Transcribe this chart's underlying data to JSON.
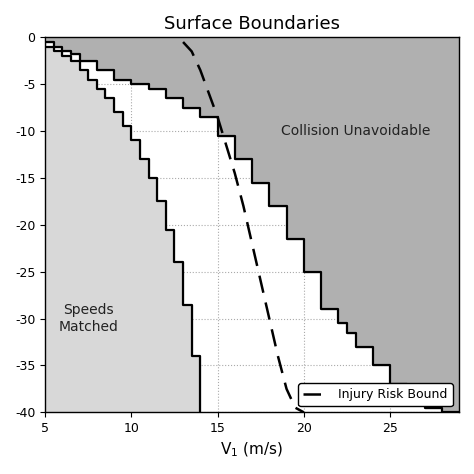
{
  "title": "Surface Boundaries",
  "xlabel": "V$_1$ (m/s)",
  "xlim": [
    5,
    29
  ],
  "ylim": [
    -40,
    0
  ],
  "xticks": [
    5,
    10,
    15,
    20,
    25
  ],
  "yticks": [
    0,
    -5,
    -10,
    -15,
    -20,
    -25,
    -30,
    -35,
    -40
  ],
  "ytick_labels": [
    "0",
    "-5",
    "-10",
    "-15",
    "-20",
    "-25",
    "-30",
    "-35",
    "-40"
  ],
  "label_collision": "Collision Unavoidable",
  "label_speeds": "Speeds\nMatched",
  "label_injury": "Injury Risk Bound",
  "bg_color": "#ffffff",
  "region_collision_color": "#b0b0b0",
  "region_speeds_color": "#d8d8d8",
  "solid_color": "#000000",
  "dashed_color": "#000000",
  "solid_linewidth": 1.6,
  "dashed_linewidth": 1.8,
  "speeds_x": [
    5.0,
    5.5,
    5.5,
    6.0,
    6.0,
    6.5,
    6.5,
    7.0,
    7.0,
    7.5,
    7.5,
    8.0,
    8.0,
    8.5,
    8.5,
    9.0,
    9.0,
    9.5,
    9.5,
    10.0,
    10.0,
    10.5,
    10.5,
    11.0,
    11.0,
    11.5,
    11.5,
    12.0,
    12.0,
    12.5,
    12.5,
    13.0,
    13.0,
    13.5,
    13.5,
    14.0,
    14.0
  ],
  "speeds_y": [
    -1.0,
    -1.0,
    -1.5,
    -1.5,
    -2.0,
    -2.0,
    -2.5,
    -2.5,
    -3.5,
    -3.5,
    -4.5,
    -4.5,
    -5.5,
    -5.5,
    -6.5,
    -6.5,
    -8.0,
    -8.0,
    -9.5,
    -9.5,
    -11.0,
    -11.0,
    -13.0,
    -13.0,
    -15.0,
    -15.0,
    -17.5,
    -17.5,
    -20.5,
    -20.5,
    -24.0,
    -24.0,
    -28.5,
    -28.5,
    -34.0,
    -34.0,
    -40.0
  ],
  "collision_x": [
    5.0,
    5.5,
    5.5,
    6.0,
    6.0,
    6.5,
    6.5,
    7.0,
    7.0,
    8.0,
    8.0,
    9.0,
    9.0,
    10.0,
    10.0,
    11.0,
    11.0,
    12.0,
    12.0,
    13.0,
    13.0,
    14.0,
    14.0,
    15.0,
    15.0,
    16.0,
    16.0,
    17.0,
    17.0,
    18.0,
    18.0,
    19.0,
    19.0,
    20.0,
    20.0,
    21.0,
    21.0,
    22.0,
    22.0,
    22.5,
    22.5,
    23.0,
    23.0,
    24.0,
    24.0,
    25.0,
    25.0,
    26.0,
    26.0,
    27.0,
    27.0,
    28.0,
    28.0,
    29.0
  ],
  "collision_y": [
    -0.5,
    -0.5,
    -1.0,
    -1.0,
    -1.5,
    -1.5,
    -1.8,
    -1.8,
    -2.5,
    -2.5,
    -3.5,
    -3.5,
    -4.5,
    -4.5,
    -5.0,
    -5.0,
    -5.5,
    -5.5,
    -6.5,
    -6.5,
    -7.5,
    -7.5,
    -8.5,
    -8.5,
    -10.5,
    -10.5,
    -13.0,
    -13.0,
    -15.5,
    -15.5,
    -18.0,
    -18.0,
    -21.5,
    -21.5,
    -25.0,
    -25.0,
    -29.0,
    -29.0,
    -30.5,
    -30.5,
    -31.5,
    -31.5,
    -33.0,
    -33.0,
    -35.0,
    -35.0,
    -37.0,
    -37.0,
    -38.5,
    -38.5,
    -39.5,
    -39.5,
    -40.0,
    -40.0
  ],
  "dashed_x": [
    13.0,
    13.5,
    14.0,
    14.5,
    15.0,
    15.5,
    16.0,
    16.5,
    17.0,
    17.5,
    18.0,
    18.5,
    19.0,
    19.5,
    20.0
  ],
  "dashed_y": [
    -0.5,
    -1.5,
    -3.5,
    -6.0,
    -8.5,
    -11.5,
    -14.5,
    -18.0,
    -22.0,
    -26.0,
    -30.0,
    -34.0,
    -37.5,
    -39.5,
    -40.0
  ]
}
